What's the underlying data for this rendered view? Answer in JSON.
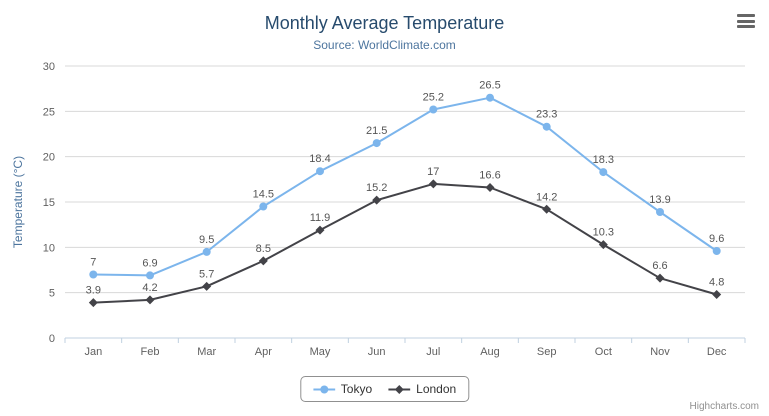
{
  "header": {
    "title": "Monthly Average Temperature",
    "subtitle": "Source: WorldClimate.com"
  },
  "icons": {
    "export_menu": "hamburger-menu-icon"
  },
  "credits": "Highcharts.com",
  "chart_data": {
    "type": "line",
    "title": "Monthly Average Temperature",
    "subtitle": "Source: WorldClimate.com",
    "categories": [
      "Jan",
      "Feb",
      "Mar",
      "Apr",
      "May",
      "Jun",
      "Jul",
      "Aug",
      "Sep",
      "Oct",
      "Nov",
      "Dec"
    ],
    "series": [
      {
        "name": "Tokyo",
        "color": "#7cb5ec",
        "marker": "circle",
        "values": [
          7,
          6.9,
          9.5,
          14.5,
          18.4,
          21.5,
          25.2,
          26.5,
          23.3,
          18.3,
          13.9,
          9.6
        ]
      },
      {
        "name": "London",
        "color": "#434348",
        "marker": "diamond",
        "values": [
          3.9,
          4.2,
          5.7,
          8.5,
          11.9,
          15.2,
          17,
          16.6,
          14.2,
          10.3,
          6.6,
          4.8
        ]
      }
    ],
    "xlabel": "",
    "ylabel": "Temperature (°C)",
    "ylim": [
      0,
      30
    ],
    "ytick_step": 5,
    "grid": true,
    "data_labels": true,
    "legend_position": "bottom"
  },
  "colors": {
    "title": "#274b6d",
    "subtitle": "#4d759e",
    "axis_label": "#606060",
    "grid": "#d8d8d8",
    "axis_line": "#c0d0e0",
    "data_label": "#555555",
    "legend_text": "#333333",
    "credits": "#909090"
  }
}
